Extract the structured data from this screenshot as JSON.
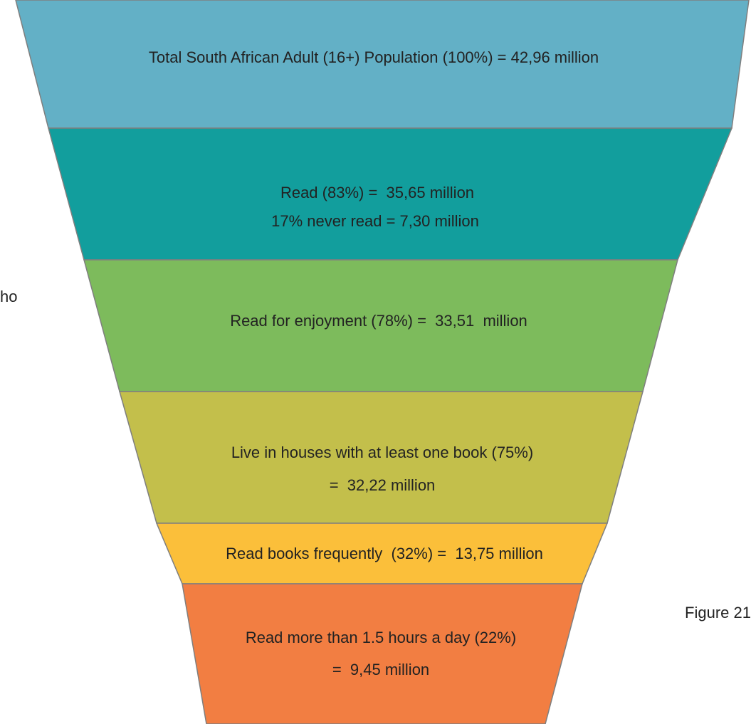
{
  "nodes": [
    {
      "lines": [
        "Total South African Adult (16+) Population (100%) = 42,96 million"
      ]
    },
    {
      "lines": [
        "Read (83%) =  35,65 million",
        "17% never read = 7,30 million"
      ]
    },
    {
      "lines": [
        "Read for enjoyment (78%) =  33,51  million"
      ]
    },
    {
      "lines": [
        "Live in houses with at least one book (75%)",
        "=  32,22 million"
      ]
    },
    {
      "lines": [
        "Read books frequently  (32%) =  13,75 million"
      ]
    },
    {
      "lines": [
        "Read more than 1.5 hours a day (22%)",
        "=  9,45 million"
      ]
    }
  ],
  "side_notes": {
    "left": "ho",
    "right": "Figure 21"
  }
}
